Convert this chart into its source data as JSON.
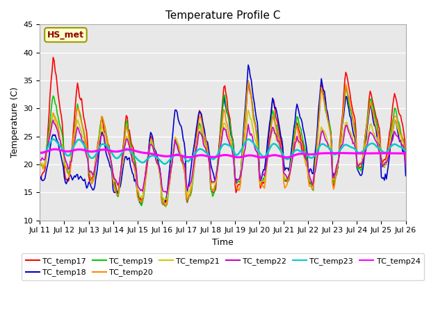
{
  "title": "Temperature Profile C",
  "xlabel": "Time",
  "ylabel": "Temperature (C)",
  "ylim": [
    10,
    45
  ],
  "xlim": [
    0,
    360
  ],
  "plot_bg_color": "#e8e8e8",
  "fig_bg_color": "#ffffff",
  "annotation_text": "HS_met",
  "annotation_facecolor": "#ffffcc",
  "annotation_edgecolor": "#999900",
  "annotation_textcolor": "#8B0000",
  "series_order": [
    "TC_temp17",
    "TC_temp18",
    "TC_temp19",
    "TC_temp20",
    "TC_temp21",
    "TC_temp22",
    "TC_temp23",
    "TC_temp24"
  ],
  "series_colors": {
    "TC_temp17": "#ff0000",
    "TC_temp18": "#0000cc",
    "TC_temp19": "#00cc00",
    "TC_temp20": "#ff8800",
    "TC_temp21": "#cccc00",
    "TC_temp22": "#cc00cc",
    "TC_temp23": "#00cccc",
    "TC_temp24": "#ff00ff"
  },
  "series_lw": {
    "TC_temp17": 1.2,
    "TC_temp18": 1.2,
    "TC_temp19": 1.2,
    "TC_temp20": 1.2,
    "TC_temp21": 1.2,
    "TC_temp22": 1.2,
    "TC_temp23": 1.8,
    "TC_temp24": 2.2
  },
  "xtick_labels": [
    "Jul 11",
    "Jul 12",
    "Jul 13",
    "Jul 14",
    "Jul 15",
    "Jul 16",
    "Jul 17",
    "Jul 18",
    "Jul 19",
    "Jul 20",
    "Jul 21",
    "Jul 22",
    "Jul 23",
    "Jul 24",
    "Jul 25",
    "Jul 26"
  ],
  "xtick_positions": [
    0,
    24,
    48,
    72,
    96,
    120,
    144,
    168,
    192,
    216,
    240,
    264,
    288,
    312,
    336,
    360
  ],
  "ytick_positions": [
    10,
    15,
    20,
    25,
    30,
    35,
    40,
    45
  ],
  "grid_color": "#ffffff",
  "title_fontsize": 11,
  "axis_label_fontsize": 9,
  "tick_fontsize": 8,
  "legend_fontsize": 8,
  "legend_ncol": 6
}
